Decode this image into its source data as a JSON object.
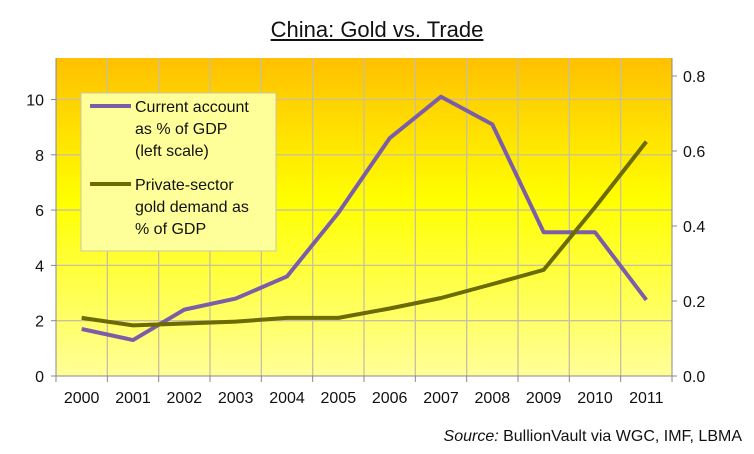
{
  "chart_data": {
    "type": "line",
    "title": "China: Gold vs. Trade",
    "categories": [
      "2000",
      "2001",
      "2002",
      "2003",
      "2004",
      "2005",
      "2006",
      "2007",
      "2008",
      "2009",
      "2010",
      "2011"
    ],
    "left_axis": {
      "ylim": [
        0,
        11.5
      ],
      "ticks": [
        "0",
        "2",
        "4",
        "6",
        "8",
        "10"
      ],
      "tick_values": [
        0,
        2,
        4,
        6,
        8,
        10
      ]
    },
    "right_axis": {
      "ylim": [
        0,
        0.848
      ],
      "ticks": [
        "0.0",
        "0.2",
        "0.4",
        "0.6",
        "0.8"
      ],
      "tick_values": [
        0,
        0.2,
        0.4,
        0.6,
        0.8
      ]
    },
    "grid": true,
    "legend_position": "top-left",
    "series": [
      {
        "name": "Current account as % of GDP (left scale)",
        "legend_lines": [
          "Current account",
          "as % of GDP",
          "(left scale)"
        ],
        "axis": "left",
        "color": "#7b5ea7",
        "values": [
          1.7,
          1.3,
          2.4,
          2.8,
          3.6,
          5.9,
          8.6,
          10.1,
          9.1,
          5.2,
          5.2,
          2.75
        ]
      },
      {
        "name": "Private-sector gold demand as % of GDP",
        "legend_lines": [
          "Private-sector",
          "gold demand as",
          "% of GDP"
        ],
        "axis": "right",
        "color": "#6b6b00",
        "values": [
          0.155,
          0.135,
          0.14,
          0.145,
          0.155,
          0.155,
          0.18,
          0.208,
          0.245,
          0.283,
          0.45,
          0.625
        ]
      }
    ],
    "source_label": "Source:",
    "source_text": "BullionVault via WGC, IMF, LBMA"
  }
}
